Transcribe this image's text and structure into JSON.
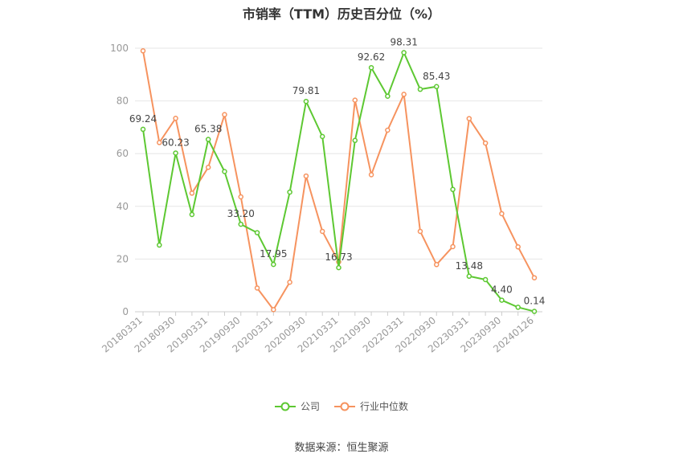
{
  "chart_data": {
    "type": "line",
    "title": "市销率（TTM）历史百分位（%）",
    "x": [
      "20180331",
      "20180630",
      "20180930",
      "20181231",
      "20190331",
      "20190630",
      "20190930",
      "20191231",
      "20200331",
      "20200630",
      "20200930",
      "20201231",
      "20210331",
      "20210630",
      "20210930",
      "20211231",
      "20220331",
      "20220630",
      "20220930",
      "20221231",
      "20230331",
      "20230630",
      "20230930",
      "20231231",
      "20240126"
    ],
    "x_tick_labels": [
      "20180331",
      "20180930",
      "20190331",
      "20190930",
      "20200331",
      "20200930",
      "20210331",
      "20210930",
      "20220331",
      "20220930",
      "20230331",
      "20230930",
      "20240126"
    ],
    "y_ticks": [
      0,
      20,
      40,
      60,
      80,
      100
    ],
    "ylim": [
      0,
      100
    ],
    "grid": true,
    "legend_position": "bottom",
    "series": [
      {
        "name": "公司",
        "color": "#5dc832",
        "values": [
          69.24,
          25.3,
          60.23,
          36.9,
          65.38,
          53.2,
          33.2,
          30.0,
          17.95,
          45.4,
          79.81,
          66.5,
          16.73,
          65.0,
          92.62,
          81.8,
          98.31,
          84.4,
          85.43,
          46.4,
          13.48,
          12.2,
          4.4,
          1.7,
          0.14
        ],
        "labels": {
          "0": "69.24",
          "2": "60.23",
          "4": "65.38",
          "6": "33.20",
          "8": "17.95",
          "10": "79.81",
          "12": "16.73",
          "14": "92.62",
          "16": "98.31",
          "18": "85.43",
          "20": "13.48",
          "22": "4.40",
          "24": "0.14"
        }
      },
      {
        "name": "行业中位数",
        "color": "#f6935f",
        "values": [
          99.0,
          64.2,
          73.4,
          45.0,
          54.8,
          74.8,
          43.6,
          9.0,
          0.8,
          11.2,
          51.5,
          30.5,
          18.9,
          80.3,
          52.0,
          68.9,
          82.5,
          30.5,
          17.9,
          24.7,
          73.3,
          64.0,
          37.2,
          24.6,
          12.9
        ]
      }
    ]
  },
  "source_text": "数据来源：恒生聚源"
}
